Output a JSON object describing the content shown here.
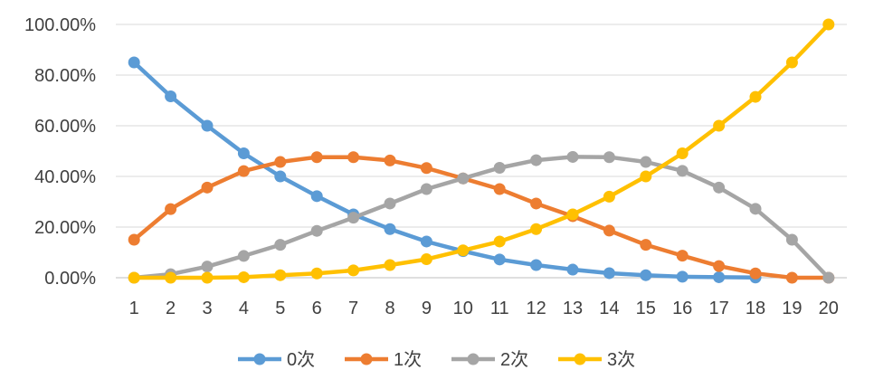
{
  "chart_data": {
    "type": "line",
    "x": [
      "1",
      "2",
      "3",
      "4",
      "5",
      "6",
      "7",
      "8",
      "9",
      "10",
      "11",
      "12",
      "13",
      "14",
      "15",
      "16",
      "17",
      "18",
      "19",
      "20"
    ],
    "ylim": [
      0,
      100
    ],
    "yticks": [
      "0.00%",
      "20.00%",
      "40.00%",
      "60.00%",
      "80.00%",
      "100.00%"
    ],
    "ytick_values": [
      0,
      20,
      40,
      60,
      80,
      100
    ],
    "grid": true,
    "legend_position": "bottom",
    "series": [
      {
        "name": "0次",
        "color": "#5B9BD5",
        "values": [
          85,
          71.6,
          60,
          49.1,
          40,
          32.2,
          25,
          19.2,
          14.3,
          10.5,
          7.2,
          5,
          3.2,
          1.8,
          1,
          0.4,
          0.2,
          0.1,
          null,
          null
        ]
      },
      {
        "name": "1次",
        "color": "#ED7D31",
        "values": [
          15,
          27.1,
          35.6,
          42.1,
          45.7,
          47.6,
          47.6,
          46.3,
          43.3,
          39.2,
          35,
          29.3,
          24.3,
          18.6,
          13,
          8.7,
          4.6,
          1.7,
          0,
          0
        ]
      },
      {
        "name": "2次",
        "color": "#A5A5A5",
        "values": [
          0,
          1.4,
          4.4,
          8.6,
          13,
          18.5,
          23.7,
          29.3,
          35,
          39.2,
          43.4,
          46.4,
          47.7,
          47.6,
          45.7,
          42.2,
          35.6,
          27.2,
          15,
          0
        ]
      },
      {
        "name": "3次",
        "color": "#FFC000",
        "values": [
          0,
          0,
          0,
          0.2,
          1,
          1.7,
          2.9,
          5,
          7.3,
          10.8,
          14.3,
          19.2,
          25,
          32,
          40,
          49.1,
          60,
          71.4,
          85,
          100
        ]
      }
    ]
  }
}
